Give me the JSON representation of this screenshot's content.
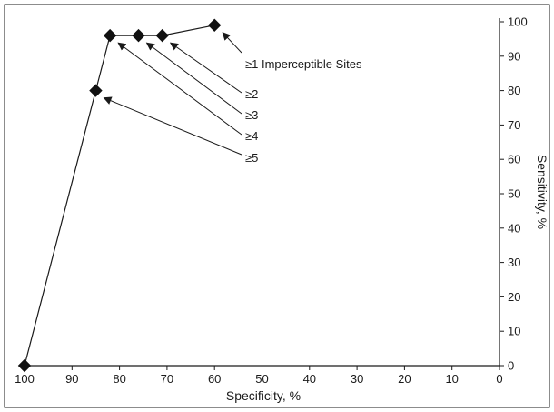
{
  "chart_data": {
    "type": "line",
    "xlabel": "Specificity, %",
    "ylabel": "Sensitivity, %",
    "xlim": [
      100,
      0
    ],
    "ylim": [
      0,
      100
    ],
    "x_ticks": [
      100,
      90,
      80,
      70,
      60,
      50,
      40,
      30,
      20,
      10,
      0
    ],
    "y_ticks": [
      0,
      10,
      20,
      30,
      40,
      50,
      60,
      70,
      80,
      90,
      100
    ],
    "x_tick_labels": [
      "100",
      "90",
      "80",
      "70",
      "60",
      "50",
      "40",
      "30",
      "20",
      "10",
      "0"
    ],
    "y_tick_labels": [
      "0",
      "10",
      "20",
      "30",
      "40",
      "50",
      "60",
      "70",
      "80",
      "90",
      "100"
    ],
    "y_axis_side": "right",
    "x_axis_reversed": true,
    "grid": false,
    "marker": "diamond",
    "series": [
      {
        "points": [
          {
            "x": 100,
            "y": 0
          },
          {
            "x": 85,
            "y": 80
          },
          {
            "x": 82,
            "y": 96
          },
          {
            "x": 76,
            "y": 96
          },
          {
            "x": 71,
            "y": 96
          },
          {
            "x": 60,
            "y": 99
          }
        ]
      }
    ],
    "annotations": [
      {
        "text": "≥1 Imperceptible Sites",
        "x": 60,
        "y": 99
      },
      {
        "text": "≥2",
        "x": 71,
        "y": 96
      },
      {
        "text": "≥3",
        "x": 76,
        "y": 96
      },
      {
        "text": "≥4",
        "x": 82,
        "y": 96
      },
      {
        "text": "≥5",
        "x": 85,
        "y": 80
      }
    ]
  }
}
